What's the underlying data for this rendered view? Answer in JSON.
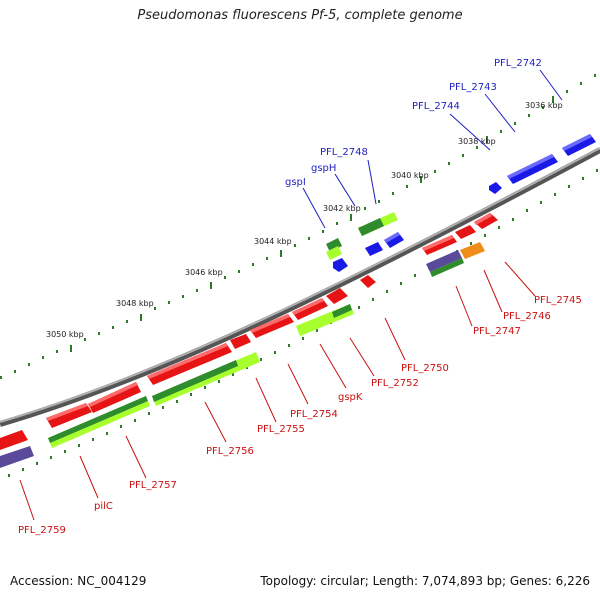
{
  "title": "Pseudomonas fluorescens Pf-5, complete genome",
  "footer": {
    "accession": "Accession: NC_004129",
    "topology": "Topology: circular; Length: 7,074,893 bp; Genes: 6,226"
  },
  "colors": {
    "backbone": "#8a8a8a",
    "forward_gene": "#1a1ae6",
    "reverse_gene": "#e61414",
    "cds_dark_green": "#2e8b2e",
    "cds_light_green": "#a8ff2e",
    "cds_purple": "#5a4a9a",
    "cds_orange": "#f08c1a",
    "tick": "#2a7a2a",
    "label_blue": "#1f1fbf",
    "label_red": "#cc1111"
  },
  "ruler_labels": [
    "3036 kbp",
    "3038 kbp",
    "3040 kbp",
    "3042 kbp",
    "3044 kbp",
    "3046 kbp",
    "3048 kbp",
    "3050 kbp"
  ],
  "labels_top": [
    "PFL_2742",
    "PFL_2743",
    "PFL_2744",
    "PFL_2748",
    "gspH",
    "gspI"
  ],
  "labels_bottom": [
    "PFL_2745",
    "PFL_2746",
    "PFL_2747",
    "PFL_2750",
    "PFL_2752",
    "gspK",
    "PFL_2754",
    "PFL_2755",
    "PFL_2756",
    "PFL_2757",
    "pilC",
    "PFL_2759"
  ]
}
